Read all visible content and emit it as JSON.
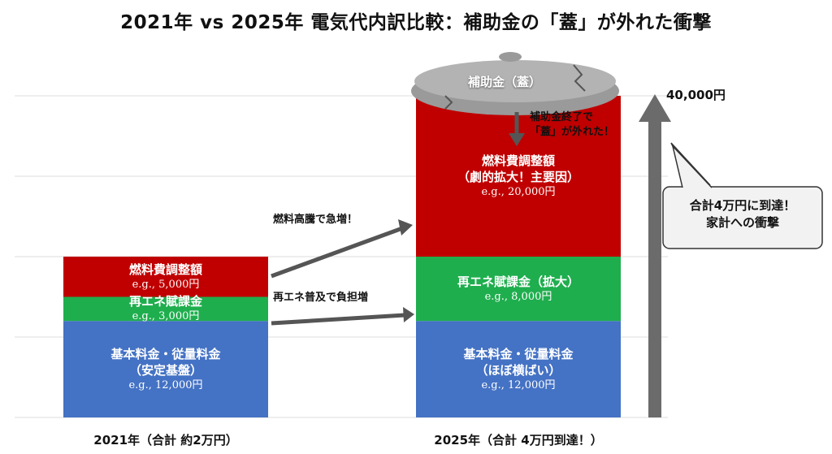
{
  "title": "2021年 vs 2025年 電気代内訳比較：補助金の「蓋」が外れた衝撃",
  "chart_data": {
    "type": "bar",
    "stacked": true,
    "ylim": [
      0,
      40000
    ],
    "grid": true,
    "categories": [
      "2021年（合計 約2万円）",
      "2025年（合計 4万円到達！）"
    ],
    "series": [
      {
        "name": "基本料金・従量料金",
        "color": "#4472c4",
        "values": [
          12000,
          12000
        ],
        "labels": [
          "基本料金・従量料金\n（安定基盤）",
          "基本料金・従量料金\n（ほぼ横ばい）"
        ],
        "value_labels": [
          "e.g., 12,000円",
          "e.g., 12,000円"
        ]
      },
      {
        "name": "再エネ賦課金",
        "color": "#1fae4e",
        "values": [
          3000,
          8000
        ],
        "labels": [
          "再エネ賦課金",
          "再エネ賦課金（拡大）"
        ],
        "value_labels": [
          "e.g., 3,000円",
          "e.g., 8,000円"
        ]
      },
      {
        "name": "燃料費調整額",
        "color": "#c00000",
        "values": [
          5000,
          20000
        ],
        "labels": [
          "燃料費調整額",
          "燃料費調整額\n（劇的拡大！主要因）"
        ],
        "value_labels": [
          "e.g., 5,000円",
          "e.g., 20,000円"
        ]
      }
    ],
    "annotations": {
      "fuel_arrow": "燃料高騰で急増！",
      "renew_arrow": "再エネ普及で負担増",
      "lid_label": "補助金（蓋）",
      "lid_note": "補助金終了で\n「蓋」が外れた！",
      "total_max": "40,000円",
      "callout": "合計4万円に到達！\n家計への衝撃"
    }
  }
}
